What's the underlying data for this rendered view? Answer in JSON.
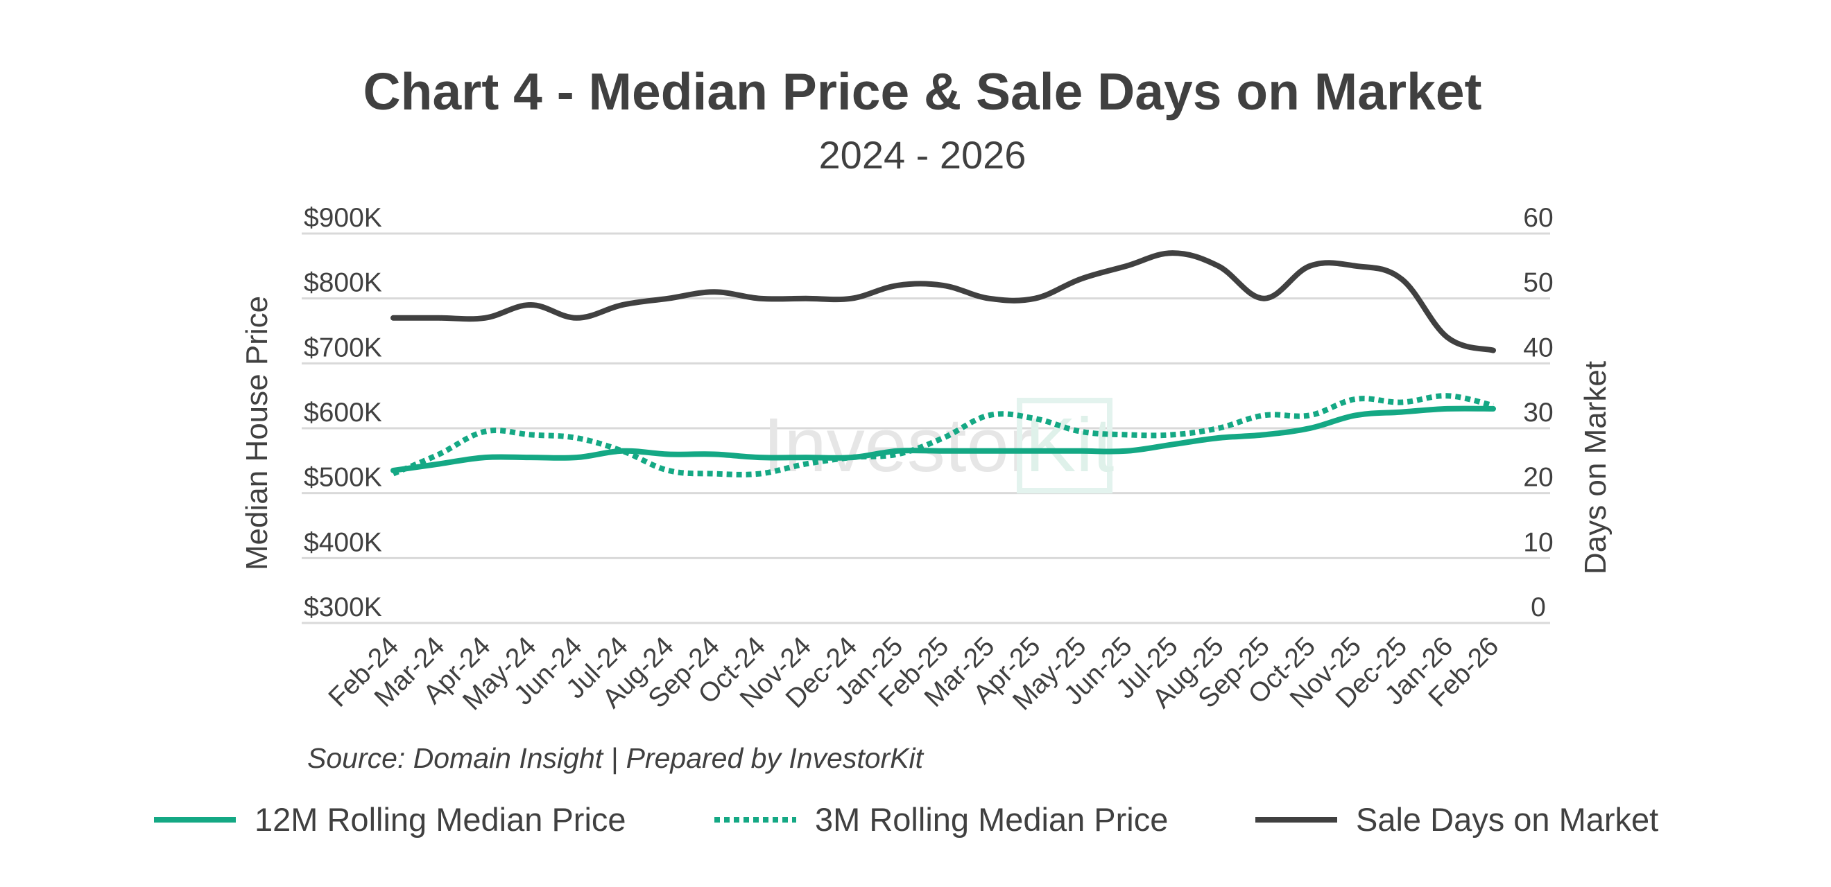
{
  "chart_data": {
    "type": "line",
    "title": "Chart 4 - Median Price & Sale Days on Market",
    "subtitle": "2024 - 2026",
    "source": "Source: Domain Insight | Prepared by InvestorKit",
    "watermark": "InvestorKit",
    "y_left": {
      "label": "Median House Price",
      "ticks": [
        "$300K",
        "$400K",
        "$500K",
        "$600K",
        "$700K",
        "$800K",
        "$900K"
      ],
      "range": [
        300000,
        900000
      ]
    },
    "y_right": {
      "label": "Days on Market",
      "ticks": [
        "0",
        "10",
        "20",
        "30",
        "40",
        "50",
        "60"
      ],
      "range": [
        0,
        60
      ]
    },
    "categories": [
      "Feb-24",
      "Mar-24",
      "Apr-24",
      "May-24",
      "Jun-24",
      "Jul-24",
      "Aug-24",
      "Sep-24",
      "Oct-24",
      "Nov-24",
      "Dec-24",
      "Jan-25",
      "Feb-25",
      "Mar-25",
      "Apr-25",
      "May-25",
      "Jun-25",
      "Jul-25",
      "Aug-25",
      "Sep-25",
      "Oct-25",
      "Nov-25",
      "Dec-25",
      "Jan-26",
      "Feb-26"
    ],
    "grid": "horizontal",
    "legend_position": "bottom",
    "series": [
      {
        "name": "12M Rolling Median Price",
        "axis": "left",
        "style": "solid",
        "color": "#14a884",
        "values": [
          535000,
          545000,
          555000,
          555000,
          555000,
          565000,
          560000,
          560000,
          555000,
          555000,
          555000,
          565000,
          565000,
          565000,
          565000,
          565000,
          565000,
          575000,
          585000,
          590000,
          600000,
          620000,
          625000,
          630000,
          630000
        ]
      },
      {
        "name": "3M Rolling Median Price",
        "axis": "left",
        "style": "dotted",
        "color": "#14a884",
        "values": [
          530000,
          560000,
          595000,
          590000,
          585000,
          565000,
          535000,
          530000,
          530000,
          545000,
          555000,
          560000,
          585000,
          620000,
          615000,
          595000,
          590000,
          590000,
          600000,
          620000,
          620000,
          645000,
          640000,
          650000,
          635000
        ]
      },
      {
        "name": "Sale Days on Market",
        "axis": "right",
        "style": "solid",
        "color": "#404040",
        "values": [
          47,
          47,
          47,
          49,
          47,
          49,
          50,
          51,
          50,
          50,
          50,
          52,
          52,
          50,
          50,
          53,
          55,
          57,
          55,
          50,
          55,
          55,
          53,
          44,
          42
        ]
      }
    ]
  }
}
